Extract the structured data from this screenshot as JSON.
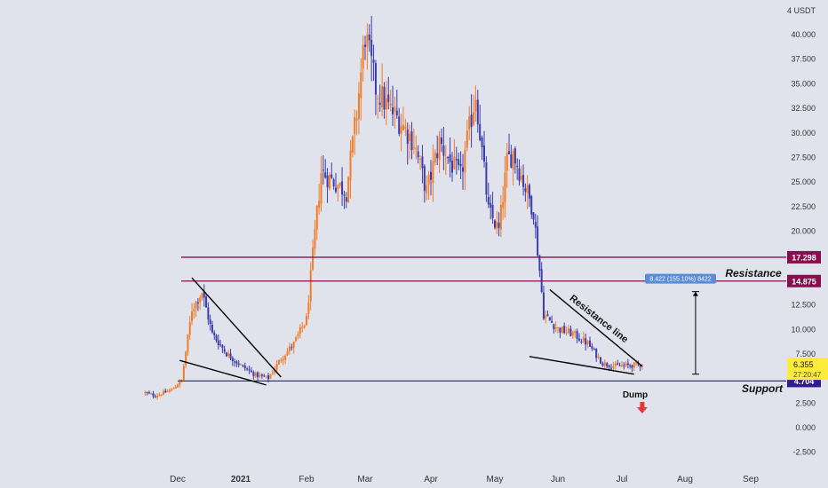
{
  "chart_data": {
    "type": "candlestick",
    "currency": "USDT",
    "colors": {
      "up": "#f47b28",
      "down": "#3c3caf",
      "resistance_line": "#880e4f",
      "support_line": "#3a2ea0",
      "support_label_bg": "#311b92",
      "price_label_bg": "#ffeb3b",
      "measure_label_bg": "#5b8dd6",
      "background": "#e0e3eb",
      "trend_line": "#000000",
      "dump_arrow": "#e53935"
    },
    "yaxis": {
      "min": -3.5,
      "max": 43.5,
      "unit_label": "4 USDT",
      "ticks": [
        "40.000",
        "37.500",
        "35.000",
        "32.500",
        "30.000",
        "27.500",
        "25.000",
        "22.500",
        "20.000",
        "12.500",
        "10.000",
        "7.500",
        "2.500",
        "0.000",
        "-2.500"
      ],
      "tick_values": [
        40,
        37.5,
        35,
        32.5,
        30,
        27.5,
        25,
        22.5,
        20,
        12.5,
        10,
        7.5,
        2.5,
        0,
        -2.5
      ]
    },
    "xaxis": {
      "ticks": [
        {
          "label": "Dec",
          "date": "2020-12-01",
          "bold": false
        },
        {
          "label": "2021",
          "date": "2021-01-01",
          "bold": true
        },
        {
          "label": "Feb",
          "date": "2021-02-01",
          "bold": false
        },
        {
          "label": "Mar",
          "date": "2021-03-01",
          "bold": false
        },
        {
          "label": "Apr",
          "date": "2021-04-01",
          "bold": false
        },
        {
          "label": "May",
          "date": "2021-05-01",
          "bold": false
        },
        {
          "label": "Jun",
          "date": "2021-06-01",
          "bold": false
        },
        {
          "label": "Jul",
          "date": "2021-07-01",
          "bold": false
        },
        {
          "label": "Aug",
          "date": "2021-08-01",
          "bold": false
        },
        {
          "label": "Sep",
          "date": "2021-09-01",
          "bold": false
        }
      ]
    },
    "price_path": [
      [
        "2020-11-15",
        3.5
      ],
      [
        "2020-11-20",
        3.2
      ],
      [
        "2020-11-28",
        3.8
      ],
      [
        "2020-12-03",
        4.8
      ],
      [
        "2020-12-08",
        12
      ],
      [
        "2020-12-13",
        13.8
      ],
      [
        "2020-12-18",
        9.5
      ],
      [
        "2020-12-25",
        7.5
      ],
      [
        "2021-01-01",
        6.3
      ],
      [
        "2021-01-08",
        5.3
      ],
      [
        "2021-01-14",
        5.0
      ],
      [
        "2021-01-20",
        7.0
      ],
      [
        "2021-01-26",
        8.5
      ],
      [
        "2021-02-01",
        11
      ],
      [
        "2021-02-04",
        17.5
      ],
      [
        "2021-02-08",
        26
      ],
      [
        "2021-02-14",
        25
      ],
      [
        "2021-02-20",
        24
      ],
      [
        "2021-02-25",
        32
      ],
      [
        "2021-03-01",
        40
      ],
      [
        "2021-03-06",
        34.5
      ],
      [
        "2021-03-12",
        32.5
      ],
      [
        "2021-03-18",
        31
      ],
      [
        "2021-03-24",
        29
      ],
      [
        "2021-03-30",
        24
      ],
      [
        "2021-04-05",
        29
      ],
      [
        "2021-04-10",
        27
      ],
      [
        "2021-04-15",
        25.5
      ],
      [
        "2021-04-22",
        34
      ],
      [
        "2021-04-28",
        22
      ],
      [
        "2021-05-03",
        20
      ],
      [
        "2021-05-07",
        27
      ],
      [
        "2021-05-10",
        28
      ],
      [
        "2021-05-15",
        25
      ],
      [
        "2021-05-20",
        22
      ],
      [
        "2021-05-23",
        16
      ],
      [
        "2021-05-25",
        11.5
      ],
      [
        "2021-06-01",
        10
      ],
      [
        "2021-06-08",
        9.5
      ],
      [
        "2021-06-15",
        8.5
      ],
      [
        "2021-06-22",
        6.5
      ],
      [
        "2021-06-28",
        6.2
      ],
      [
        "2021-07-05",
        6.3
      ],
      [
        "2021-07-11",
        6.4
      ]
    ],
    "horizontal_lines": [
      {
        "name": "resistance-upper",
        "value": 17.298,
        "label": "17.298",
        "color_key": "resistance_line"
      },
      {
        "name": "resistance-lower",
        "value": 14.875,
        "label": "14.875",
        "color_key": "resistance_line"
      },
      {
        "name": "support",
        "value": 4.704,
        "label": "4.704",
        "color_key": "support_line"
      }
    ],
    "current_price": {
      "value": 6.355,
      "label": "6.355",
      "sublabel": "27:20:47"
    },
    "annotations": {
      "resistance_text": "Resistance",
      "support_text": "Support",
      "resistance_line_text": "Resistance line",
      "dump_text": "Dump",
      "measure_label": "8.422 (155.10%) 8422"
    },
    "trendlines": [
      {
        "name": "dec-resistance-trendline",
        "from": [
          "2020-12-08",
          15.2
        ],
        "to": [
          "2021-01-20",
          5.1
        ]
      },
      {
        "name": "dec-support-trendline",
        "from": [
          "2020-12-02",
          6.8
        ],
        "to": [
          "2021-01-13",
          4.3
        ]
      },
      {
        "name": "jun-resistance-trendline",
        "from": [
          "2021-05-28",
          14.0
        ],
        "to": [
          "2021-07-11",
          6.2
        ]
      },
      {
        "name": "jun-support-trendline",
        "from": [
          "2021-05-18",
          7.2
        ],
        "to": [
          "2021-07-07",
          5.4
        ]
      }
    ],
    "measure_range": {
      "date": "2021-08-06",
      "from": 5.4,
      "to": 13.8
    },
    "dump_marker": {
      "date": "2021-07-11",
      "value": 2.0
    }
  }
}
